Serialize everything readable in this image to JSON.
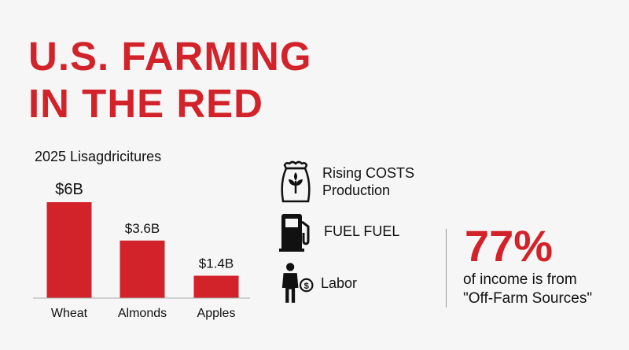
{
  "title_line1": "U.S. FARMING",
  "title_line2": "IN THE RED",
  "colors": {
    "accent": "#d2232a",
    "text": "#111111",
    "background": "#f6f6f6"
  },
  "chart_data": {
    "type": "bar",
    "subtitle": "2025 Lisagdricitures",
    "categories": [
      "Wheat",
      "Almonds",
      "Apples"
    ],
    "values": [
      6,
      3.6,
      1.4
    ],
    "value_labels": [
      "$6B",
      "$3.6B",
      "$1.4B"
    ],
    "unit": "$B",
    "ylim": [
      0,
      6.2
    ],
    "grid": false,
    "bar_color": "#d2232a"
  },
  "costs": [
    {
      "icon": "seed-bag-icon",
      "line1": "Rising COSTS",
      "line2": "Production"
    },
    {
      "icon": "fuel-pump-icon",
      "line1": "FUEL FUEL",
      "line2": ""
    },
    {
      "icon": "worker-dollar-icon",
      "line1": "Labor",
      "line2": ""
    }
  ],
  "stat": {
    "value": "77%",
    "line1": "of income is from",
    "line2": "\"Off-Farm Sources\""
  }
}
